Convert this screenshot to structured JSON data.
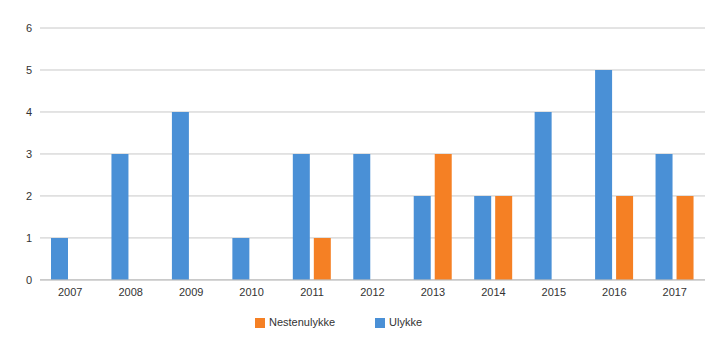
{
  "chart_data": {
    "type": "bar",
    "categories": [
      "2007",
      "2008",
      "2009",
      "2010",
      "2011",
      "2012",
      "2013",
      "2014",
      "2015",
      "2016",
      "2017"
    ],
    "series": [
      {
        "name": "Ulykke",
        "color": "#4a90d6",
        "values": [
          1,
          3,
          4,
          1,
          3,
          3,
          2,
          2,
          4,
          5,
          3
        ]
      },
      {
        "name": "Nestenulykke",
        "color": "#f58024",
        "values": [
          0,
          0,
          0,
          0,
          1,
          0,
          3,
          2,
          0,
          2,
          2
        ]
      }
    ],
    "ylim": [
      0,
      6
    ],
    "yticks": [
      0,
      1,
      2,
      3,
      4,
      5,
      6
    ],
    "grid": true,
    "legend": "bottom"
  }
}
